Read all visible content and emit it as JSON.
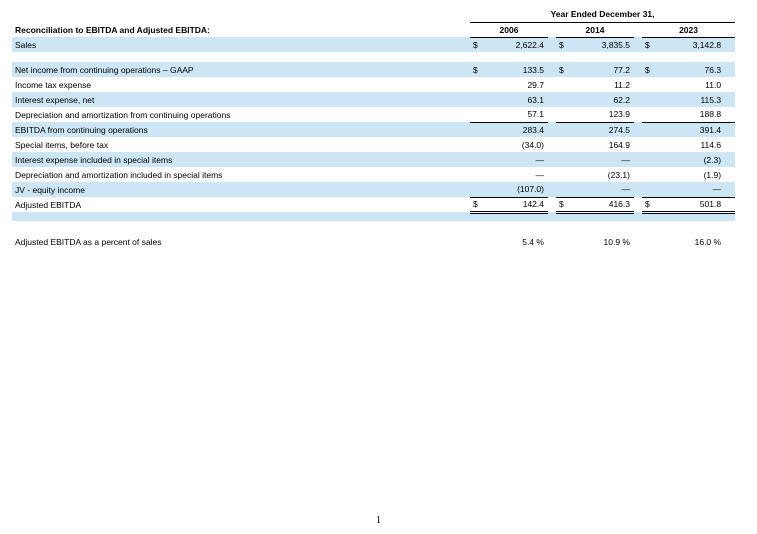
{
  "colors": {
    "band": "#cce6f5",
    "rule": "#000000"
  },
  "footer": {
    "page_number": "1"
  },
  "table": {
    "title": "Reconciliation to EBITDA and Adjusted EBITDA:",
    "period_header": "Year Ended December 31,",
    "years": [
      "2006",
      "2014",
      "2023"
    ],
    "rows": [
      {
        "label": "Sales",
        "prefix": [
          "$",
          "$",
          "$"
        ],
        "values": [
          "2,622.4",
          "3,835.5",
          "3,142.8"
        ],
        "shaded": true
      },
      {
        "blank": true,
        "shaded": false,
        "height": 10
      },
      {
        "label": "Net income from continuing operations – GAAP",
        "prefix": [
          "$",
          "$",
          "$"
        ],
        "values": [
          "133.5",
          "77.2",
          "76.3"
        ],
        "shaded": true
      },
      {
        "label": "Income tax expense",
        "values": [
          "29.7",
          "11.2",
          "11.0"
        ],
        "shaded": false
      },
      {
        "label": "Interest expense, net",
        "values": [
          "63.1",
          "62.2",
          "115.3"
        ],
        "shaded": true
      },
      {
        "label": "Depreciation and amortization from continuing operations",
        "values": [
          "57.1",
          "123.9",
          "188.8"
        ],
        "shaded": false,
        "rule": "single"
      },
      {
        "label": "EBITDA from continuing operations",
        "values": [
          "283.4",
          "274.5",
          "391.4"
        ],
        "shaded": true
      },
      {
        "label": "Special items, before tax",
        "values": [
          "(34.0)",
          "164.9",
          "114.6"
        ],
        "shaded": false
      },
      {
        "label": "Interest expense included in special items",
        "values": [
          "—",
          "—",
          "(2.3)"
        ],
        "shaded": true
      },
      {
        "label": "Depreciation and amortization included in special items",
        "values": [
          "—",
          "(23.1)",
          "(1.9)"
        ],
        "shaded": false
      },
      {
        "label": "JV - equity income",
        "values": [
          "(107.0)",
          "—",
          "—"
        ],
        "shaded": true,
        "rule": "single"
      },
      {
        "label": "Adjusted EBITDA",
        "prefix": [
          "$",
          "$",
          "$"
        ],
        "values": [
          "142.4",
          "416.3",
          "501.8"
        ],
        "shaded": false,
        "rule": "double"
      },
      {
        "blank": true,
        "shaded": true,
        "height": 9
      },
      {
        "blank": true,
        "shaded": false,
        "height": 13
      },
      {
        "label": "Adjusted EBITDA as a percent of sales",
        "values": [
          "5.4",
          "10.9",
          "16.0"
        ],
        "suffix": [
          "%",
          "%",
          "%"
        ],
        "shaded": false
      }
    ]
  }
}
